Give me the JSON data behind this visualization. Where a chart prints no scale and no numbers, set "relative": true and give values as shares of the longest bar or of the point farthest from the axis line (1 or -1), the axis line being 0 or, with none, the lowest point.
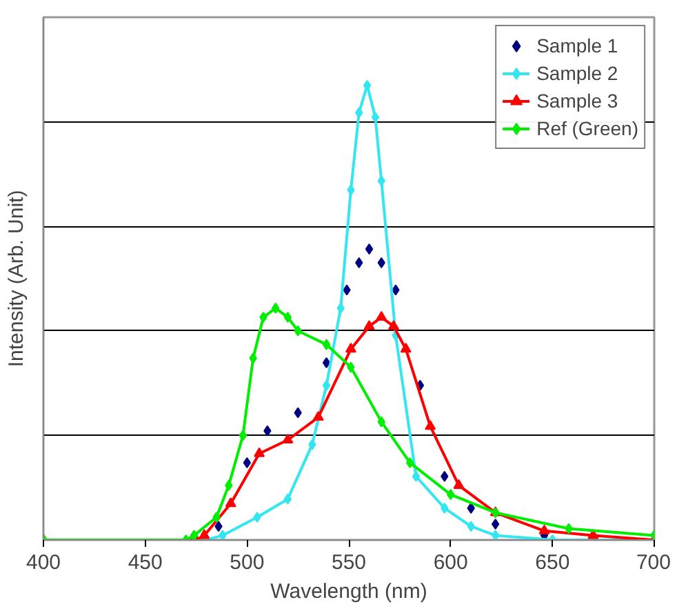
{
  "chart_data": {
    "type": "line",
    "xlabel": "Wavelength (nm)",
    "ylabel": "Intensity (Arb. Unit)",
    "relative": true,
    "xlim": [
      400,
      700
    ],
    "xticks": [
      400,
      450,
      500,
      550,
      600,
      650,
      700
    ],
    "grid": "y",
    "legend": "top right",
    "tick_labels": "x",
    "series": [
      {
        "name": "Sample 1",
        "type": "scatter",
        "marker": "diamond",
        "color": "#000080",
        "x": [
          486,
          500,
          510,
          525,
          539,
          549,
          555,
          560,
          566,
          573,
          585,
          597,
          610,
          622,
          646
        ],
        "values": [
          0.03,
          0.17,
          0.24,
          0.28,
          0.39,
          0.55,
          0.61,
          0.64,
          0.61,
          0.55,
          0.34,
          0.14,
          0.07,
          0.035,
          0.01
        ]
      },
      {
        "name": "Sample 2",
        "marker": "diamond",
        "color": "#33e6f0",
        "x": [
          400,
          480,
          488,
          505,
          520,
          532,
          539,
          546,
          551,
          555,
          559,
          563,
          566,
          573,
          583,
          597,
          610,
          622,
          650,
          700
        ],
        "values": [
          0,
          0,
          0.01,
          0.05,
          0.09,
          0.21,
          0.34,
          0.51,
          0.77,
          0.94,
          1,
          0.93,
          0.79,
          0.45,
          0.14,
          0.07,
          0.03,
          0.01,
          0,
          0
        ]
      },
      {
        "name": "Sample 3",
        "marker": "triangle",
        "color": "#ff0000",
        "x": [
          400,
          475,
          479,
          492,
          506,
          520,
          535,
          551,
          560,
          566,
          572,
          578,
          590,
          604,
          622,
          646,
          670,
          700
        ],
        "values": [
          0,
          0,
          0.01,
          0.08,
          0.19,
          0.22,
          0.27,
          0.42,
          0.47,
          0.49,
          0.47,
          0.42,
          0.25,
          0.12,
          0.06,
          0.02,
          0.01,
          0
        ]
      },
      {
        "name": "Ref (Green)",
        "marker": "diamond",
        "color": "#00ee00",
        "x": [
          400,
          470,
          474,
          485,
          491,
          498,
          503,
          508,
          514,
          520,
          525,
          539,
          551,
          566,
          580,
          600,
          622,
          658,
          700
        ],
        "values": [
          0,
          0,
          0.01,
          0.05,
          0.12,
          0.23,
          0.4,
          0.49,
          0.51,
          0.49,
          0.46,
          0.43,
          0.38,
          0.26,
          0.17,
          0.1,
          0.06,
          0.025,
          0.01
        ]
      }
    ]
  }
}
